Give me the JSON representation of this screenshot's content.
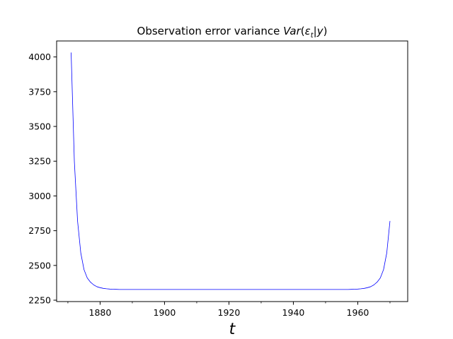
{
  "chart_data": {
    "type": "line",
    "title": "Observation error variance Var(ε_t|y)",
    "title_parts": {
      "plain": "Observation error variance ",
      "math_var": "Var",
      "math_open": "(",
      "math_eps": "ε",
      "math_sub": "t",
      "math_bar": "|",
      "math_y": "y",
      "math_close": ")"
    },
    "xlabel": "t",
    "ylabel": "",
    "xlim": [
      1866.5,
      1975.5
    ],
    "ylim": [
      2240,
      4115
    ],
    "x_major_ticks": [
      1880,
      1900,
      1920,
      1940,
      1960
    ],
    "x_minor_ticks": [
      1870,
      1890,
      1910,
      1930,
      1950,
      1970
    ],
    "y_ticks": [
      2250,
      2500,
      2750,
      3000,
      3250,
      3500,
      3750,
      4000
    ],
    "grid": false,
    "series": [
      {
        "color": "#0000ff",
        "x": [
          1871,
          1872,
          1873,
          1874,
          1875,
          1876,
          1877,
          1878,
          1879,
          1880,
          1881,
          1882,
          1883,
          1884,
          1885,
          1886,
          1890,
          1900,
          1910,
          1920,
          1930,
          1940,
          1950,
          1955,
          1956,
          1957,
          1958,
          1959,
          1960,
          1961,
          1962,
          1963,
          1964,
          1965,
          1966,
          1967,
          1968,
          1969,
          1970
        ],
        "y": [
          4032,
          3250,
          2820,
          2590,
          2470,
          2410,
          2380,
          2360,
          2347,
          2340,
          2335,
          2332,
          2330,
          2329,
          2328,
          2327,
          2327,
          2327,
          2327,
          2327,
          2327,
          2327,
          2327,
          2327,
          2327,
          2327,
          2328,
          2329,
          2330,
          2332,
          2335,
          2340,
          2347,
          2360,
          2380,
          2410,
          2470,
          2590,
          2820
        ]
      }
    ]
  }
}
